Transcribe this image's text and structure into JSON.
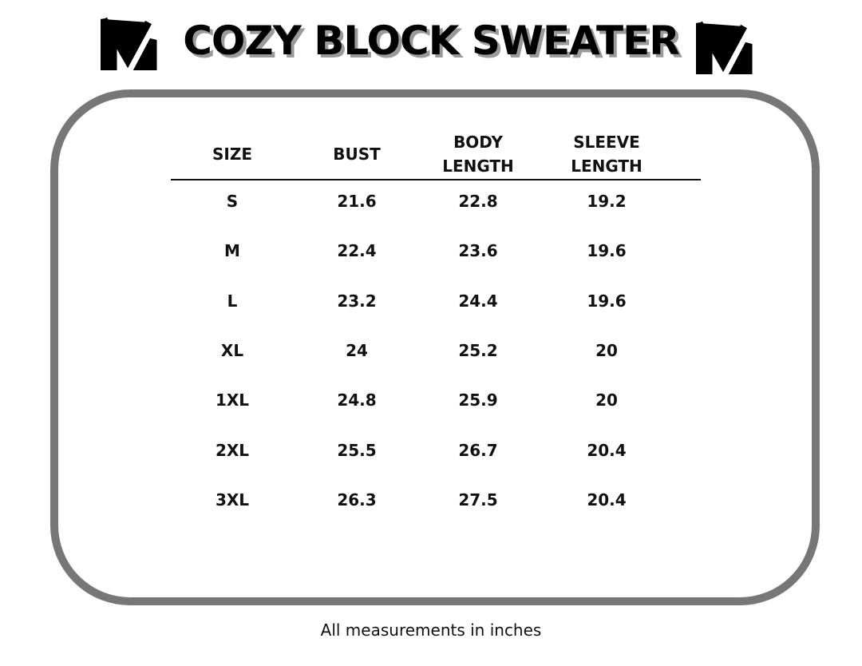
{
  "header": {
    "title": "COZY BLOCK SWEATER"
  },
  "table": {
    "columns": [
      "SIZE",
      "BUST",
      "BODY LENGTH",
      "SLEEVE LENGTH"
    ],
    "rows": [
      [
        "S",
        "21.6",
        "22.8",
        "19.2"
      ],
      [
        "M",
        "22.4",
        "23.6",
        "19.6"
      ],
      [
        "L",
        "23.2",
        "24.4",
        "19.6"
      ],
      [
        "XL",
        "24",
        "25.2",
        "20"
      ],
      [
        "1XL",
        "24.8",
        "25.9",
        "20"
      ],
      [
        "2XL",
        "25.5",
        "26.7",
        "20.4"
      ],
      [
        "3XL",
        "26.3",
        "27.5",
        "20.4"
      ]
    ]
  },
  "footer": {
    "note": "All measurements in inches"
  }
}
